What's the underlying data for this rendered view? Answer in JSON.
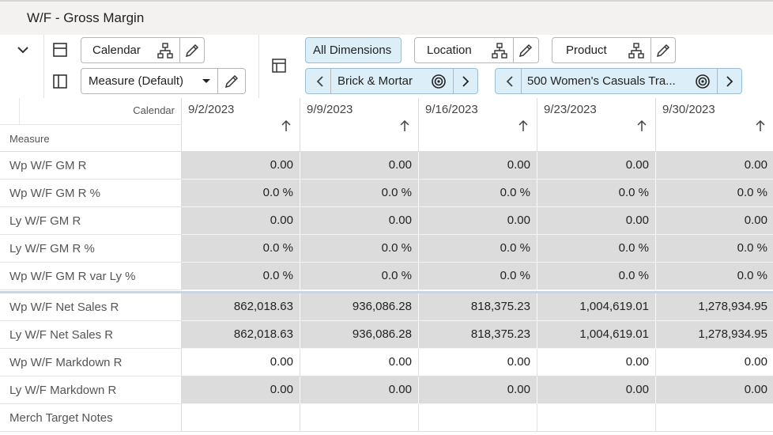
{
  "window": {
    "title": "W/F - Gross Margin"
  },
  "toolbar": {
    "calendar_label": "Calendar",
    "measure_label": "Measure (Default)",
    "all_dimensions_label": "All Dimensions",
    "location_label": "Location",
    "product_label": "Product",
    "location_value": "Brick & Mortar",
    "product_value": "500 Women's Casuals Tra..."
  },
  "grid": {
    "corner_calendar": "Calendar",
    "corner_measure": "Measure",
    "columns": [
      "9/2/2023",
      "9/9/2023",
      "9/16/2023",
      "9/23/2023",
      "9/30/2023"
    ],
    "rows": [
      {
        "label": "Wp W/F GM R",
        "values": [
          "0.00",
          "0.00",
          "0.00",
          "0.00",
          "0.00"
        ]
      },
      {
        "label": "Wp W/F GM R %",
        "values": [
          "0.0 %",
          "0.0 %",
          "0.0 %",
          "0.0 %",
          "0.0 %"
        ]
      },
      {
        "label": "Ly W/F GM R",
        "values": [
          "0.00",
          "0.00",
          "0.00",
          "0.00",
          "0.00"
        ]
      },
      {
        "label": "Ly W/F GM R %",
        "values": [
          "0.0 %",
          "0.0 %",
          "0.0 %",
          "0.0 %",
          "0.0 %"
        ]
      },
      {
        "label": "Wp W/F GM R var Ly %",
        "values": [
          "0.0 %",
          "0.0 %",
          "0.0 %",
          "0.0 %",
          "0.0 %"
        ]
      },
      {
        "label": "Wp W/F Net Sales R",
        "values": [
          "862,018.63",
          "936,086.28",
          "818,375.23",
          "1,004,619.01",
          "1,278,934.95"
        ]
      },
      {
        "label": "Ly W/F Net Sales R",
        "values": [
          "862,018.63",
          "936,086.28",
          "818,375.23",
          "1,004,619.01",
          "1,278,934.95"
        ]
      },
      {
        "label": "Wp W/F Markdown R",
        "values": [
          "0.00",
          "0.00",
          "0.00",
          "0.00",
          "0.00"
        ]
      },
      {
        "label": "Ly W/F Markdown R",
        "values": [
          "0.00",
          "0.00",
          "0.00",
          "0.00",
          "0.00"
        ]
      },
      {
        "label": "Merch Target Notes",
        "values": [
          "",
          "",
          "",
          "",
          ""
        ]
      }
    ]
  }
}
